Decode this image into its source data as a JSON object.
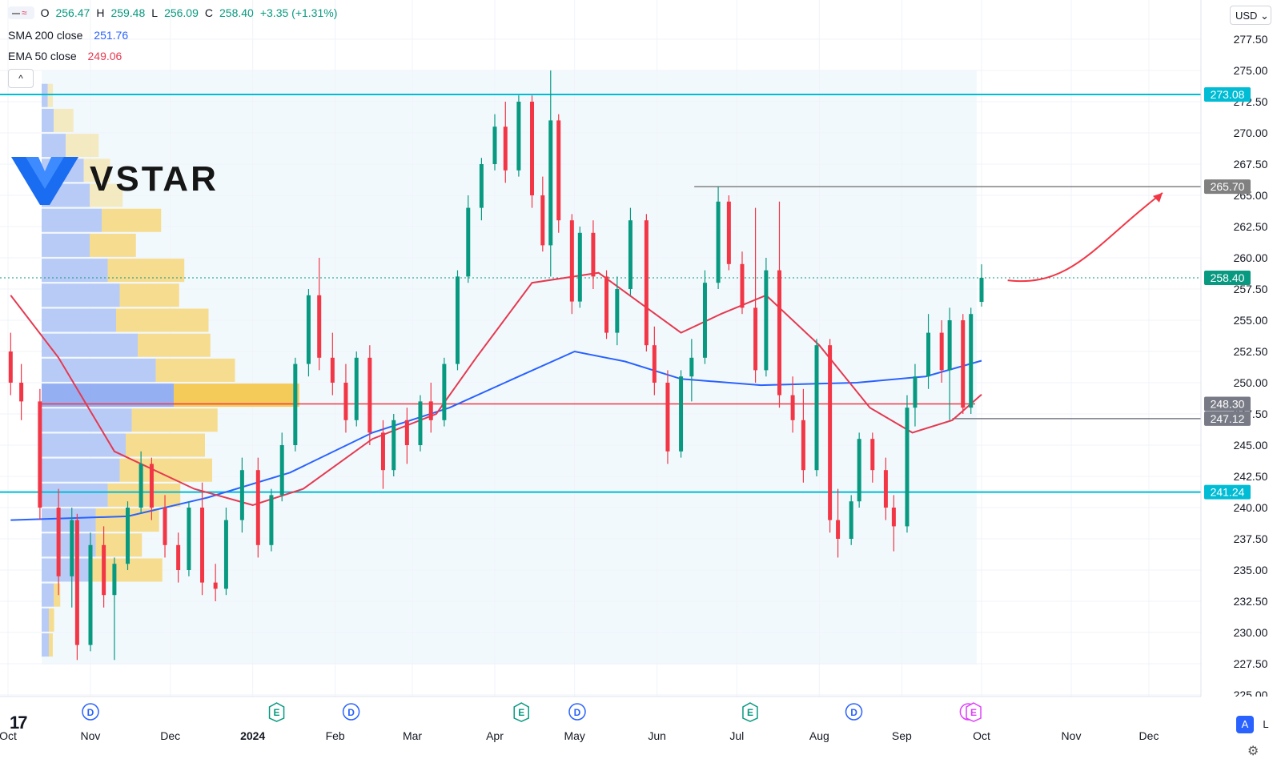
{
  "legend": {
    "ohlc": {
      "o_label": "O",
      "o": "256.47",
      "h_label": "H",
      "h": "259.48",
      "l_label": "L",
      "l": "256.09",
      "c_label": "C",
      "c": "258.40",
      "change": "+3.35 (+1.31%)"
    },
    "sma": {
      "label": "SMA 200 close",
      "value": "251.76",
      "color": "#2962ff"
    },
    "ema": {
      "label": "EMA 50 close",
      "value": "249.06",
      "color": "#e53950"
    }
  },
  "controls": {
    "collapse": "^",
    "currency": "USD ⌄",
    "auto": "A",
    "log": "L"
  },
  "logo": {
    "brand": "VSTAR",
    "tradingview_mark": "17"
  },
  "colors": {
    "up": "#089981",
    "down": "#f23645",
    "sma": "#2962ff",
    "ema": "#e53950",
    "cyan": "#00bcd4",
    "grid": "#f0f3fa"
  },
  "chart_data": {
    "type": "candlestick",
    "y_axis": {
      "min": 225.0,
      "max": 277.5,
      "ticks": [
        "225.00",
        "227.50",
        "230.00",
        "232.50",
        "235.00",
        "237.50",
        "240.00",
        "242.50",
        "245.00",
        "247.50",
        "250.00",
        "252.50",
        "255.00",
        "257.50",
        "260.00",
        "262.50",
        "265.00",
        "267.50",
        "270.00",
        "272.50",
        "275.00",
        "277.50"
      ]
    },
    "x_axis": {
      "ticks": [
        "Oct",
        "Nov",
        "Dec",
        "2024",
        "Feb",
        "Mar",
        "Apr",
        "May",
        "Jun",
        "Jul",
        "Aug",
        "Sep",
        "Oct",
        "Nov",
        "Dec"
      ],
      "range": [
        "2023-10-01",
        "2024-12-31"
      ]
    },
    "event_markers": [
      {
        "date": "2023-11-01",
        "type": "D"
      },
      {
        "date": "2024-01-10",
        "type": "E"
      },
      {
        "date": "2024-02-07",
        "type": "D"
      },
      {
        "date": "2024-04-11",
        "type": "E"
      },
      {
        "date": "2024-05-02",
        "type": "D"
      },
      {
        "date": "2024-07-06",
        "type": "E"
      },
      {
        "date": "2024-08-14",
        "type": "D"
      },
      {
        "date": "2024-09-26",
        "type": "split"
      },
      {
        "date": "2024-09-28",
        "type": "E"
      }
    ],
    "horizontal_levels": [
      {
        "value": 273.08,
        "label": "273.08",
        "color": "#00bcd4",
        "style": "solid"
      },
      {
        "value": 265.7,
        "label": "265.70",
        "color": "#808080",
        "style": "solid",
        "from": "2024-06-15"
      },
      {
        "value": 258.4,
        "label": "258.40",
        "color": "#089981",
        "style": "dotted"
      },
      {
        "value": 248.3,
        "label": "248.30",
        "color": "#787b86",
        "style": "solid",
        "line_color": "#f23645"
      },
      {
        "value": 247.12,
        "label": "247.12",
        "color": "#787b86",
        "style": "solid",
        "from": "2024-09-20"
      },
      {
        "value": 241.24,
        "label": "241.24",
        "color": "#00bcd4",
        "style": "solid"
      }
    ],
    "candles": [
      [
        "2023-10-02",
        252.5,
        254.0,
        249.0,
        250.0
      ],
      [
        "2023-10-06",
        250.0,
        251.5,
        247.0,
        248.5
      ],
      [
        "2023-10-13",
        248.5,
        249.5,
        239.0,
        240.0
      ],
      [
        "2023-10-20",
        240.0,
        241.5,
        233.0,
        234.5
      ],
      [
        "2023-10-25",
        234.5,
        240.0,
        232.0,
        239.0
      ],
      [
        "2023-10-27",
        239.0,
        239.5,
        227.8,
        229.0
      ],
      [
        "2023-11-01",
        229.0,
        238.0,
        228.5,
        237.0
      ],
      [
        "2023-11-06",
        237.0,
        238.5,
        232.0,
        233.0
      ],
      [
        "2023-11-10",
        233.0,
        236.0,
        227.8,
        235.5
      ],
      [
        "2023-11-15",
        235.5,
        240.5,
        235.0,
        240.0
      ],
      [
        "2023-11-20",
        240.0,
        244.5,
        239.5,
        243.5
      ],
      [
        "2023-11-24",
        243.5,
        244.0,
        239.0,
        240.0
      ],
      [
        "2023-11-29",
        240.0,
        241.0,
        236.0,
        237.0
      ],
      [
        "2023-12-04",
        237.0,
        238.0,
        234.0,
        235.0
      ],
      [
        "2023-12-08",
        235.0,
        240.5,
        234.5,
        240.0
      ],
      [
        "2023-12-13",
        240.0,
        242.0,
        233.0,
        234.0
      ],
      [
        "2023-12-18",
        234.0,
        235.5,
        232.5,
        233.5
      ],
      [
        "2023-12-22",
        233.5,
        240.0,
        233.0,
        239.0
      ],
      [
        "2023-12-28",
        239.0,
        244.0,
        238.0,
        243.0
      ],
      [
        "2024-01-03",
        243.0,
        244.0,
        236.0,
        237.0
      ],
      [
        "2024-01-08",
        237.0,
        241.5,
        236.5,
        241.0
      ],
      [
        "2024-01-12",
        241.0,
        246.0,
        240.5,
        245.0
      ],
      [
        "2024-01-17",
        245.0,
        252.0,
        244.5,
        251.5
      ],
      [
        "2024-01-22",
        251.5,
        257.5,
        250.5,
        257.0
      ],
      [
        "2024-01-26",
        257.0,
        260.0,
        251.0,
        252.0
      ],
      [
        "2024-01-31",
        252.0,
        254.0,
        249.0,
        250.0
      ],
      [
        "2024-02-05",
        250.0,
        251.5,
        246.0,
        247.0
      ],
      [
        "2024-02-09",
        247.0,
        252.5,
        246.5,
        252.0
      ],
      [
        "2024-02-14",
        252.0,
        253.0,
        245.0,
        246.0
      ],
      [
        "2024-02-19",
        246.0,
        247.0,
        241.5,
        243.0
      ],
      [
        "2024-02-23",
        243.0,
        247.5,
        242.5,
        247.0
      ],
      [
        "2024-02-28",
        247.0,
        248.0,
        243.5,
        245.0
      ],
      [
        "2024-03-04",
        245.0,
        249.0,
        244.5,
        248.5
      ],
      [
        "2024-03-08",
        248.5,
        250.0,
        246.0,
        247.0
      ],
      [
        "2024-03-13",
        247.0,
        252.0,
        246.5,
        251.5
      ],
      [
        "2024-03-18",
        251.5,
        259.0,
        251.0,
        258.5
      ],
      [
        "2024-03-22",
        258.5,
        265.0,
        258.0,
        264.0
      ],
      [
        "2024-03-27",
        264.0,
        268.0,
        263.0,
        267.5
      ],
      [
        "2024-04-01",
        267.5,
        271.5,
        267.0,
        270.5
      ],
      [
        "2024-04-05",
        270.5,
        272.5,
        266.0,
        267.0
      ],
      [
        "2024-04-10",
        267.0,
        273.0,
        266.5,
        272.5
      ],
      [
        "2024-04-15",
        272.5,
        273.0,
        264.0,
        265.0
      ],
      [
        "2024-04-19",
        265.0,
        266.5,
        260.5,
        261.0
      ],
      [
        "2024-04-22",
        261.0,
        275.0,
        258.5,
        271.0
      ],
      [
        "2024-04-25",
        271.0,
        271.5,
        262.0,
        263.0
      ],
      [
        "2024-04-30",
        263.0,
        263.5,
        255.5,
        256.5
      ],
      [
        "2024-05-03",
        256.5,
        262.5,
        256.0,
        262.0
      ],
      [
        "2024-05-08",
        262.0,
        263.0,
        257.5,
        258.5
      ],
      [
        "2024-05-13",
        258.5,
        259.0,
        253.5,
        254.0
      ],
      [
        "2024-05-17",
        254.0,
        258.5,
        253.0,
        257.5
      ],
      [
        "2024-05-22",
        257.5,
        264.0,
        257.0,
        263.0
      ],
      [
        "2024-05-28",
        263.0,
        263.5,
        252.5,
        253.0
      ],
      [
        "2024-05-31",
        253.0,
        254.5,
        249.0,
        250.0
      ],
      [
        "2024-06-05",
        250.0,
        251.0,
        243.5,
        244.5
      ],
      [
        "2024-06-10",
        244.5,
        251.0,
        244.0,
        250.5
      ],
      [
        "2024-06-14",
        250.5,
        253.5,
        248.5,
        252.0
      ],
      [
        "2024-06-19",
        252.0,
        259.0,
        251.5,
        258.0
      ],
      [
        "2024-06-24",
        258.0,
        265.7,
        257.5,
        264.5
      ],
      [
        "2024-06-28",
        264.5,
        265.0,
        259.0,
        259.5
      ],
      [
        "2024-07-03",
        259.5,
        260.5,
        255.5,
        256.0
      ],
      [
        "2024-07-08",
        256.0,
        264.0,
        250.0,
        251.0
      ],
      [
        "2024-07-12",
        251.0,
        260.0,
        250.5,
        259.0
      ],
      [
        "2024-07-17",
        259.0,
        264.5,
        248.0,
        249.0
      ],
      [
        "2024-07-22",
        249.0,
        250.5,
        246.0,
        247.0
      ],
      [
        "2024-07-26",
        247.0,
        249.5,
        242.0,
        243.0
      ],
      [
        "2024-07-31",
        243.0,
        253.5,
        242.5,
        253.0
      ],
      [
        "2024-08-05",
        253.0,
        253.5,
        238.0,
        239.0
      ],
      [
        "2024-08-08",
        239.0,
        241.5,
        236.0,
        237.5
      ],
      [
        "2024-08-13",
        237.5,
        241.0,
        237.0,
        240.5
      ],
      [
        "2024-08-16",
        240.5,
        246.0,
        240.0,
        245.5
      ],
      [
        "2024-08-21",
        245.5,
        246.0,
        242.0,
        243.0
      ],
      [
        "2024-08-26",
        243.0,
        244.0,
        239.0,
        240.0
      ],
      [
        "2024-08-29",
        240.0,
        241.0,
        236.5,
        238.5
      ],
      [
        "2024-09-03",
        238.5,
        249.0,
        238.0,
        248.0
      ],
      [
        "2024-09-06",
        248.0,
        251.5,
        246.5,
        250.5
      ],
      [
        "2024-09-11",
        250.5,
        255.5,
        249.5,
        254.0
      ],
      [
        "2024-09-16",
        254.0,
        255.0,
        250.0,
        251.0
      ],
      [
        "2024-09-19",
        251.0,
        256.0,
        247.0,
        255.0
      ],
      [
        "2024-09-24",
        255.0,
        255.5,
        247.5,
        248.0
      ],
      [
        "2024-09-27",
        248.0,
        256.0,
        247.5,
        255.5
      ],
      [
        "2024-10-01",
        256.47,
        259.48,
        256.09,
        258.4
      ]
    ],
    "sma200": [
      [
        "2023-10-02",
        239.0
      ],
      [
        "2023-11-15",
        239.3
      ],
      [
        "2023-12-15",
        240.8
      ],
      [
        "2024-01-15",
        242.8
      ],
      [
        "2024-02-15",
        246.0
      ],
      [
        "2024-03-15",
        248.0
      ],
      [
        "2024-04-10",
        250.5
      ],
      [
        "2024-05-01",
        252.5
      ],
      [
        "2024-05-20",
        251.7
      ],
      [
        "2024-06-10",
        250.3
      ],
      [
        "2024-07-10",
        249.8
      ],
      [
        "2024-08-15",
        250.0
      ],
      [
        "2024-09-10",
        250.5
      ],
      [
        "2024-10-01",
        251.76
      ]
    ],
    "ema50": [
      [
        "2023-10-02",
        257.0
      ],
      [
        "2023-10-20",
        252.0
      ],
      [
        "2023-11-10",
        244.5
      ],
      [
        "2023-12-10",
        241.5
      ],
      [
        "2024-01-01",
        240.2
      ],
      [
        "2024-01-20",
        241.5
      ],
      [
        "2024-02-15",
        245.5
      ],
      [
        "2024-03-10",
        247.5
      ],
      [
        "2024-03-25",
        252.0
      ],
      [
        "2024-04-15",
        258.0
      ],
      [
        "2024-05-10",
        258.8
      ],
      [
        "2024-06-10",
        254.0
      ],
      [
        "2024-06-25",
        255.5
      ],
      [
        "2024-07-12",
        257.0
      ],
      [
        "2024-08-01",
        253.0
      ],
      [
        "2024-08-20",
        248.0
      ],
      [
        "2024-09-05",
        246.0
      ],
      [
        "2024-09-20",
        247.0
      ],
      [
        "2024-10-01",
        249.06
      ]
    ],
    "volume_profile": [
      {
        "price": 273.0,
        "up": 0.05,
        "down": 0.04
      },
      {
        "price": 271.0,
        "up": 0.1,
        "down": 0.15
      },
      {
        "price": 269.0,
        "up": 0.2,
        "down": 0.25
      },
      {
        "price": 267.0,
        "up": 0.35,
        "down": 0.2
      },
      {
        "price": 265.0,
        "up": 0.4,
        "down": 0.25
      },
      {
        "price": 263.0,
        "up": 0.5,
        "down": 0.45
      },
      {
        "price": 261.0,
        "up": 0.4,
        "down": 0.35
      },
      {
        "price": 259.0,
        "up": 0.55,
        "down": 0.58
      },
      {
        "price": 257.0,
        "up": 0.65,
        "down": 0.45
      },
      {
        "price": 255.0,
        "up": 0.62,
        "down": 0.7
      },
      {
        "price": 253.0,
        "up": 0.8,
        "down": 0.55
      },
      {
        "price": 251.0,
        "up": 0.95,
        "down": 0.6
      },
      {
        "price": 249.0,
        "up": 1.1,
        "down": 0.95
      },
      {
        "price": 247.0,
        "up": 0.75,
        "down": 0.65
      },
      {
        "price": 245.0,
        "up": 0.7,
        "down": 0.6
      },
      {
        "price": 243.0,
        "up": 0.65,
        "down": 0.7
      },
      {
        "price": 241.0,
        "up": 0.55,
        "down": 0.55
      },
      {
        "price": 239.0,
        "up": 0.45,
        "down": 0.48
      },
      {
        "price": 237.0,
        "up": 0.45,
        "down": 0.35
      },
      {
        "price": 235.0,
        "up": 0.4,
        "down": 0.55
      },
      {
        "price": 233.0,
        "up": 0.1,
        "down": 0.05
      },
      {
        "price": 231.0,
        "up": 0.06,
        "down": 0.04
      },
      {
        "price": 229.0,
        "up": 0.06,
        "down": 0.03
      }
    ],
    "forecast_arrow": {
      "from": [
        "2024-10-03",
        258.2
      ],
      "to": [
        "2024-12-05",
        265.2
      ],
      "color": "#f23645"
    }
  }
}
